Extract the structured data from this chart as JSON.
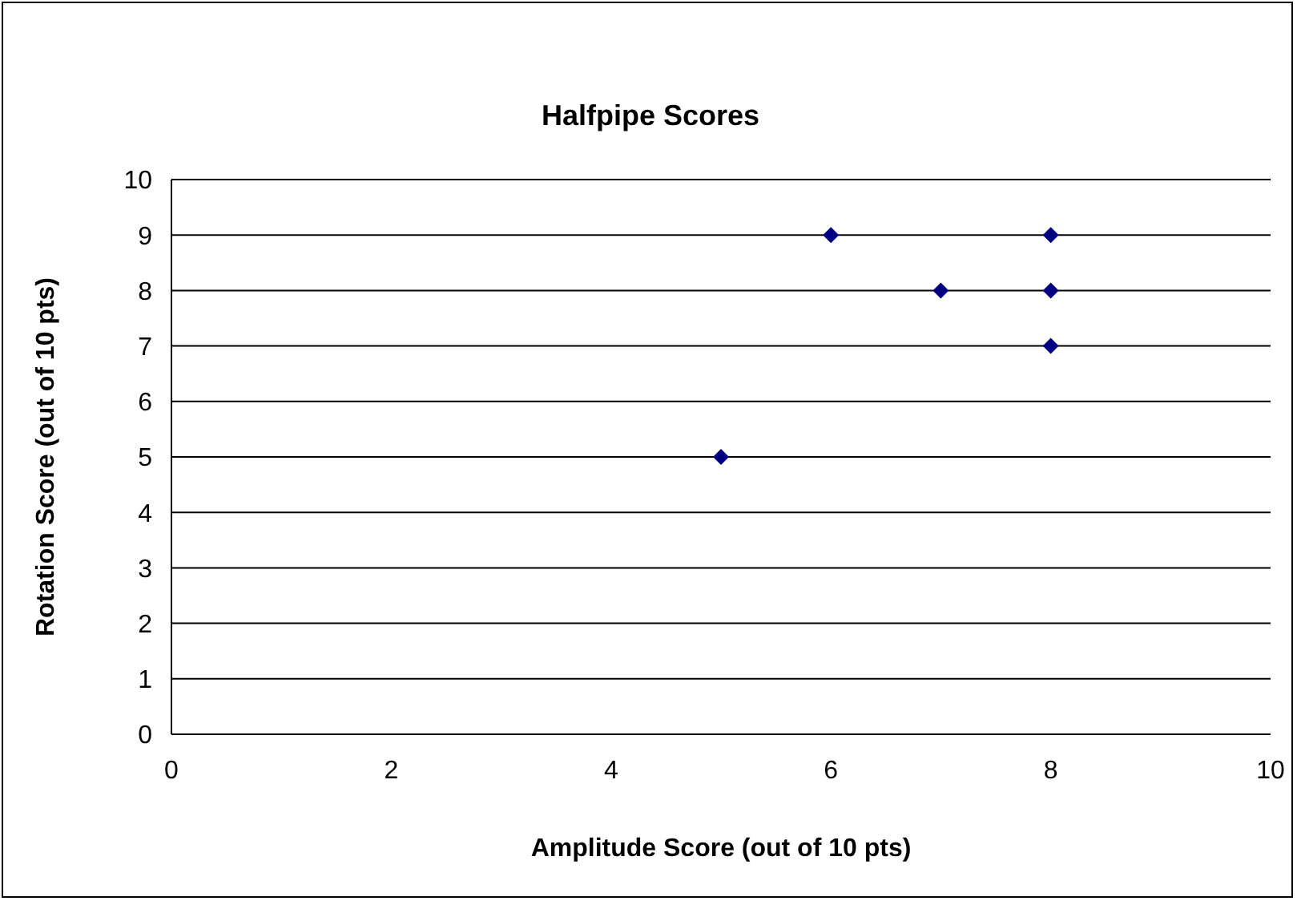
{
  "chart_data": {
    "type": "scatter",
    "title": "Halfpipe Scores",
    "xlabel": "Amplitude Score (out of 10 pts)",
    "ylabel": "Rotation Score (out of 10 pts)",
    "x": [
      5,
      6,
      7,
      8,
      8,
      8
    ],
    "series": [
      {
        "color": "#000080",
        "values": [
          5,
          9,
          8,
          9,
          8,
          7
        ]
      }
    ],
    "xlim": [
      0,
      10
    ],
    "xticks": [
      0,
      2,
      4,
      6,
      8,
      10
    ],
    "ylim": [
      0,
      10
    ],
    "yticks": [
      0,
      1,
      2,
      3,
      4,
      5,
      6,
      7,
      8,
      9,
      10
    ],
    "grid": "y",
    "marker": "diamond"
  }
}
